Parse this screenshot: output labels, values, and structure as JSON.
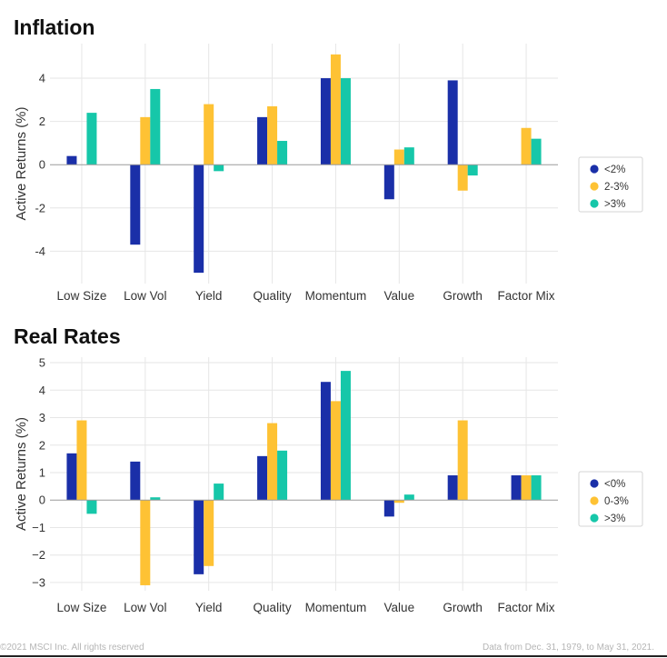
{
  "colors": {
    "navy": "#1a2fa8",
    "yellow": "#fec234",
    "teal": "#16c7a9",
    "grid": "#e6e6e6",
    "zero": "#9a9a9a"
  },
  "footer": {
    "copyright": "©2021 MSCI Inc. All rights reserved",
    "source": "Data from Dec. 31, 1979, to May 31, 2021."
  },
  "chart_data": [
    {
      "type": "bar",
      "title": "Inflation",
      "ylabel": "Active Returns (%)",
      "xlabel": "",
      "categories": [
        "Low Size",
        "Low Vol",
        "Yield",
        "Quality",
        "Momentum",
        "Value",
        "Growth",
        "Factor Mix"
      ],
      "ylim": [
        -5.5,
        5.6
      ],
      "yticks": [
        -4,
        -2,
        0,
        2,
        4
      ],
      "ytick_labels": [
        "-4",
        "-2",
        "0",
        "2",
        "4"
      ],
      "grid": true,
      "legend_position": "right",
      "series": [
        {
          "name": "<2%",
          "color": "#1a2fa8",
          "values": [
            0.4,
            -3.7,
            -5.0,
            2.2,
            4.0,
            -1.6,
            3.9,
            null
          ]
        },
        {
          "name": "2-3%",
          "color": "#fec234",
          "values": [
            null,
            2.2,
            2.8,
            2.7,
            5.1,
            0.7,
            -1.2,
            1.7
          ]
        },
        {
          "name": ">3%",
          "color": "#16c7a9",
          "values": [
            2.4,
            3.5,
            -0.3,
            1.1,
            4.0,
            0.8,
            -0.5,
            1.2
          ]
        }
      ]
    },
    {
      "type": "bar",
      "title": "Real Rates",
      "ylabel": "Active Returns (%)",
      "xlabel": "",
      "categories": [
        "Low Size",
        "Low Vol",
        "Yield",
        "Quality",
        "Momentum",
        "Value",
        "Growth",
        "Factor Mix"
      ],
      "ylim": [
        -3.3,
        5.2
      ],
      "yticks": [
        -3,
        -2,
        -1,
        0,
        1,
        2,
        3,
        4,
        5
      ],
      "ytick_labels": [
        "−3",
        "−2",
        "−1",
        "0",
        "1",
        "2",
        "3",
        "4",
        "5"
      ],
      "grid": true,
      "legend_position": "right",
      "series": [
        {
          "name": "<0%",
          "color": "#1a2fa8",
          "values": [
            1.7,
            1.4,
            -2.7,
            1.6,
            4.3,
            -0.6,
            0.9,
            0.9
          ]
        },
        {
          "name": "0-3%",
          "color": "#fec234",
          "values": [
            2.9,
            -3.1,
            -2.4,
            2.8,
            3.6,
            -0.1,
            2.9,
            0.9
          ]
        },
        {
          "name": ">3%",
          "color": "#16c7a9",
          "values": [
            -0.5,
            0.1,
            0.6,
            1.8,
            4.7,
            0.2,
            null,
            0.9
          ]
        }
      ]
    }
  ]
}
